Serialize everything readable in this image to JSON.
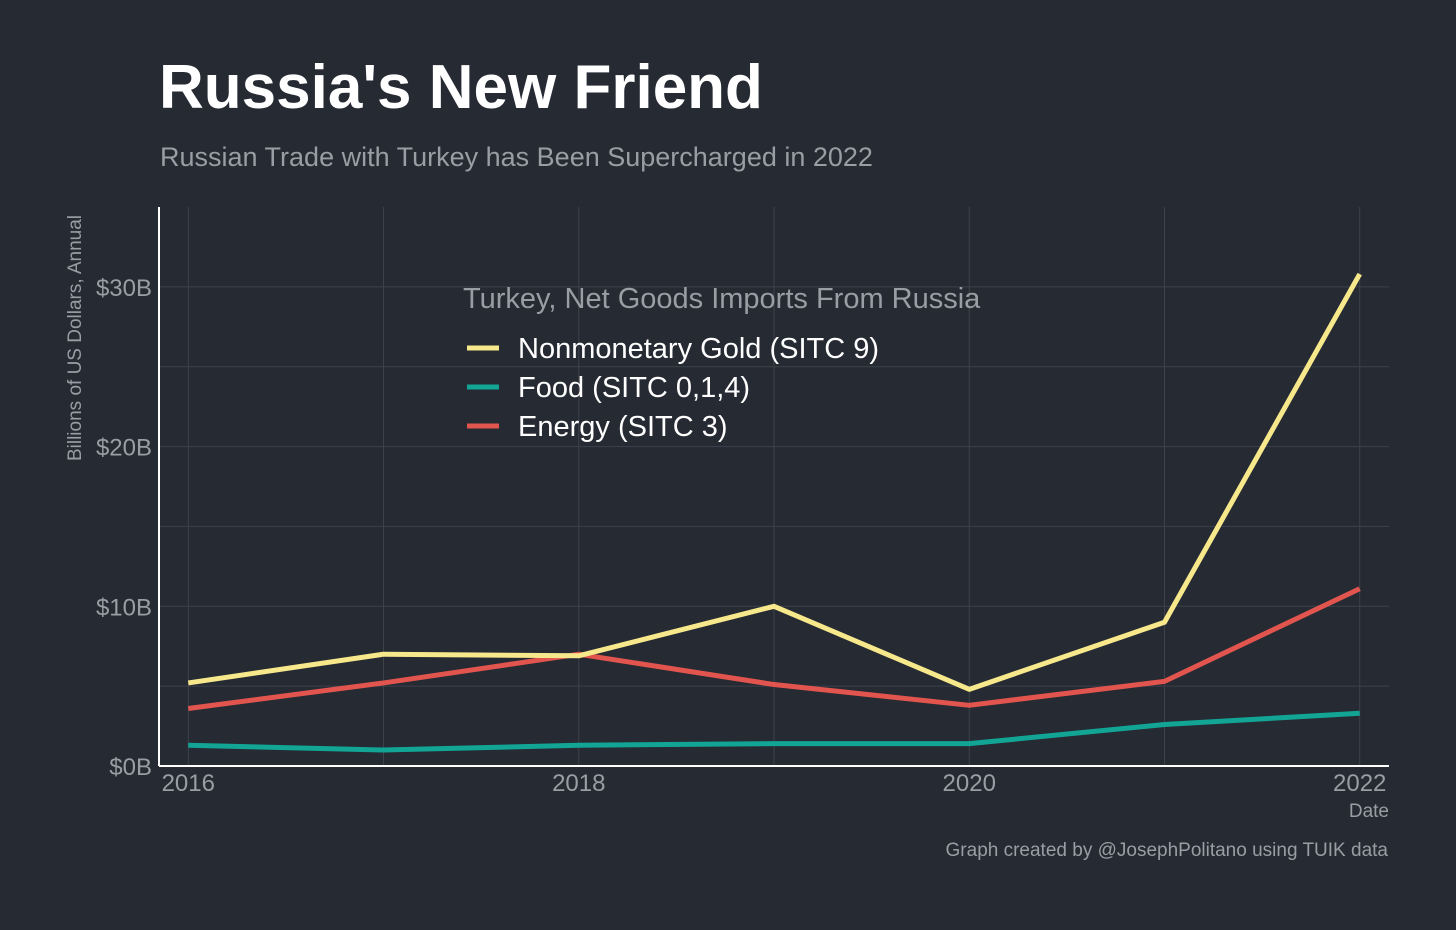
{
  "title": "Russia's New Friend",
  "subtitle": "Russian Trade with Turkey has Been Supercharged in 2022",
  "caption": "Graph created by @JosephPolitano using TUIK data",
  "colors": {
    "background": "#252a33",
    "gold": "#f7e88b",
    "food": "#12a596",
    "energy": "#e2554e",
    "grid": "#3d424b",
    "axis": "#ffffff",
    "muted_text": "#9a9da3"
  },
  "chart_data": {
    "type": "line",
    "x": [
      2016,
      2017,
      2018,
      2019,
      2020,
      2021,
      2022
    ],
    "xlim": [
      2015.85,
      2022.15
    ],
    "ylim": [
      0,
      35
    ],
    "x_ticks": [
      2016,
      2018,
      2020,
      2022
    ],
    "x_tick_labels": [
      "2016",
      "2018",
      "2020",
      "2022"
    ],
    "x_minor_ticks": [
      2017,
      2019,
      2021
    ],
    "y_ticks": [
      0,
      10,
      20,
      30
    ],
    "y_tick_labels": [
      "$0B",
      "$10B",
      "$20B",
      "$30B"
    ],
    "y_minor_ticks": [
      5,
      15,
      25
    ],
    "xlabel": "Date",
    "ylabel": "Billions of US Dollars, Annual",
    "grid": true,
    "legend_title": "Turkey, Net Goods Imports From Russia",
    "legend_position": "top-center",
    "series": [
      {
        "name": "Nonmonetary Gold (SITC 9)",
        "color": "#f7e88b",
        "values": [
          5.2,
          7.0,
          6.9,
          10.0,
          4.8,
          9.0,
          30.8
        ]
      },
      {
        "name": "Food (SITC 0,1,4)",
        "color": "#12a596",
        "values": [
          1.3,
          1.0,
          1.3,
          1.4,
          1.4,
          2.6,
          3.3
        ]
      },
      {
        "name": "Energy (SITC 3)",
        "color": "#e2554e",
        "values": [
          3.6,
          5.2,
          7.0,
          5.1,
          3.8,
          5.3,
          11.1
        ]
      }
    ]
  }
}
